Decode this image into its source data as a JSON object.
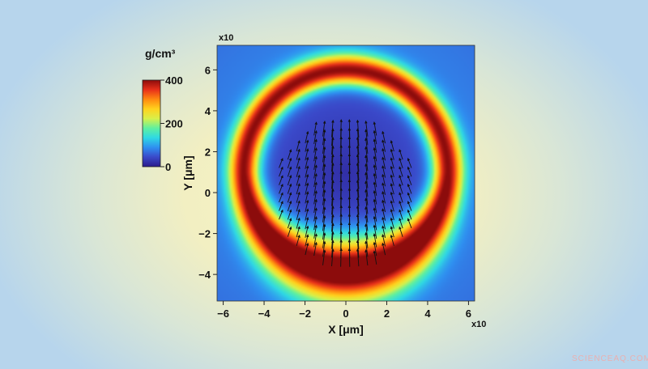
{
  "chart_data": {
    "type": "heatmap",
    "xlabel": "X [μm]",
    "ylabel": "Y [μm]",
    "x_multiplier": "x10",
    "y_multiplier": "x10",
    "xlim": [
      -6.3,
      6.3
    ],
    "ylim": [
      -5.3,
      7.2
    ],
    "x_ticks": [
      -6,
      -4,
      -2,
      0,
      2,
      4,
      6
    ],
    "y_ticks": [
      -4,
      -2,
      0,
      2,
      4,
      6
    ],
    "x_tick_labels": [
      "−6",
      "−4",
      "−2",
      "0",
      "2",
      "4",
      "6"
    ],
    "y_tick_labels": [
      "−4",
      "−2",
      "0",
      "2",
      "4",
      "6"
    ],
    "colorbar": {
      "unit": "g/cm³",
      "range": [
        0,
        400
      ],
      "ticks": [
        0,
        200,
        400
      ],
      "tick_labels": [
        "0",
        "200",
        "400"
      ],
      "colormap": [
        "#2b1b8c",
        "#3a49c9",
        "#2f8ff0",
        "#2fd8e4",
        "#5ff0a0",
        "#d8f04a",
        "#ffd21e",
        "#ff8a10",
        "#e8301a",
        "#8c0c0c"
      ]
    },
    "field": {
      "shell_center": [
        0,
        1
      ],
      "shell_radius": 5,
      "shell_peak_density": 400,
      "inner_density": 20,
      "outer_density": 80
    },
    "arrows": {
      "region_center": [
        0,
        0
      ],
      "region_radius": 3.5,
      "direction": "upward, converging",
      "color": "#111111"
    },
    "grid": false,
    "legend": "none"
  },
  "watermark": "SCIENCEAQ.COM"
}
